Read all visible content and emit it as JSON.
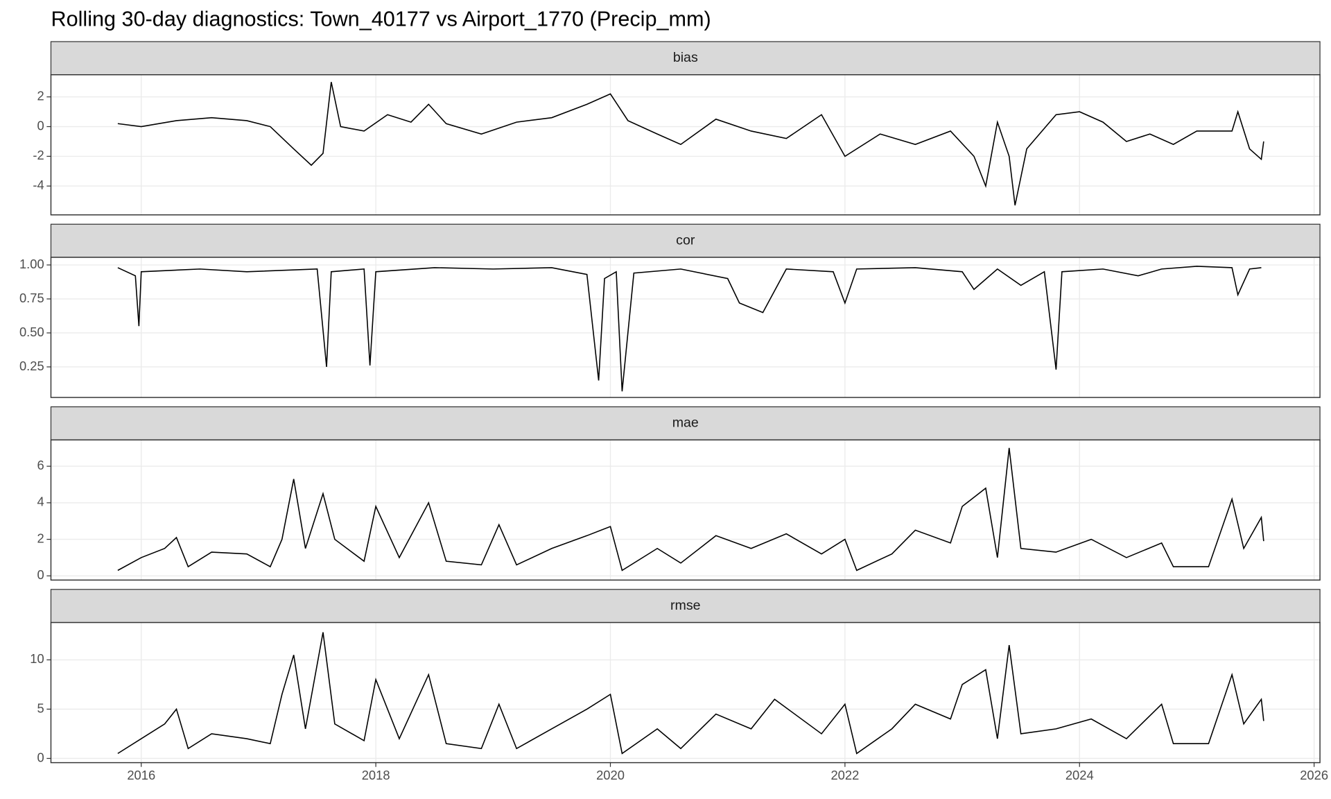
{
  "title": "Rolling 30-day diagnostics: Town_40177 vs Airport_1770 (Precip_mm)",
  "chart_data": [
    {
      "type": "line",
      "title": "bias",
      "color": "#000000",
      "grid": true,
      "x": [
        2015.8,
        2016.0,
        2016.3,
        2016.6,
        2016.9,
        2017.1,
        2017.3,
        2017.45,
        2017.55,
        2017.62,
        2017.7,
        2017.9,
        2018.1,
        2018.3,
        2018.45,
        2018.6,
        2018.9,
        2019.2,
        2019.5,
        2019.8,
        2020.0,
        2020.15,
        2020.4,
        2020.6,
        2020.9,
        2021.2,
        2021.5,
        2021.8,
        2022.0,
        2022.3,
        2022.6,
        2022.9,
        2023.1,
        2023.2,
        2023.3,
        2023.4,
        2023.45,
        2023.55,
        2023.8,
        2024.0,
        2024.2,
        2024.4,
        2024.6,
        2024.8,
        2025.0,
        2025.3,
        2025.35,
        2025.45,
        2025.55,
        2025.57
      ],
      "values": [
        0.2,
        0.0,
        0.4,
        0.6,
        0.4,
        0.0,
        -1.5,
        -2.6,
        -1.8,
        3.0,
        0.0,
        -0.3,
        0.8,
        0.3,
        1.5,
        0.2,
        -0.5,
        0.3,
        0.6,
        1.5,
        2.2,
        0.4,
        -0.5,
        -1.2,
        0.5,
        -0.3,
        -0.8,
        0.8,
        -2.0,
        -0.5,
        -1.2,
        -0.3,
        -2.0,
        -4.0,
        0.3,
        -2.0,
        -5.3,
        -1.5,
        0.8,
        1.0,
        0.3,
        -1.0,
        -0.5,
        -1.2,
        -0.3,
        -0.3,
        1.0,
        -1.5,
        -2.2,
        -1.0
      ],
      "xlim": [
        2015.23,
        2026.05
      ],
      "xticks": [
        2016,
        2018,
        2020,
        2022,
        2024,
        2026
      ],
      "ylim": [
        -5.94,
        3.49
      ],
      "yticks": [
        2,
        0,
        -2,
        -4
      ]
    },
    {
      "type": "line",
      "title": "cor",
      "color": "#000000",
      "grid": true,
      "x": [
        2015.8,
        2015.95,
        2015.98,
        2016.0,
        2016.5,
        2016.9,
        2017.5,
        2017.58,
        2017.62,
        2017.9,
        2017.95,
        2018.0,
        2018.5,
        2019.0,
        2019.5,
        2019.8,
        2019.9,
        2019.95,
        2020.05,
        2020.1,
        2020.2,
        2020.6,
        2021.0,
        2021.1,
        2021.3,
        2021.5,
        2021.9,
        2022.0,
        2022.1,
        2022.6,
        2023.0,
        2023.1,
        2023.3,
        2023.5,
        2023.7,
        2023.8,
        2023.85,
        2024.2,
        2024.5,
        2024.7,
        2025.0,
        2025.3,
        2025.35,
        2025.45,
        2025.55
      ],
      "values": [
        0.98,
        0.92,
        0.55,
        0.95,
        0.97,
        0.95,
        0.97,
        0.25,
        0.95,
        0.97,
        0.26,
        0.95,
        0.98,
        0.97,
        0.98,
        0.93,
        0.15,
        0.9,
        0.95,
        0.07,
        0.94,
        0.97,
        0.9,
        0.72,
        0.65,
        0.97,
        0.95,
        0.72,
        0.97,
        0.98,
        0.95,
        0.82,
        0.97,
        0.85,
        0.95,
        0.23,
        0.95,
        0.97,
        0.92,
        0.97,
        0.99,
        0.98,
        0.78,
        0.97,
        0.98
      ],
      "xlim": [
        2015.23,
        2026.05
      ],
      "xticks": [
        2016,
        2018,
        2020,
        2022,
        2024,
        2026
      ],
      "ylim": [
        0.025,
        1.056
      ],
      "yticks": [
        {
          "value": 1,
          "label": "1.00"
        },
        0.75,
        {
          "value": 0.5,
          "label": "0.50"
        },
        0.25
      ]
    },
    {
      "type": "line",
      "title": "mae",
      "color": "#000000",
      "grid": true,
      "x": [
        2015.8,
        2016.0,
        2016.2,
        2016.3,
        2016.4,
        2016.6,
        2016.9,
        2017.1,
        2017.2,
        2017.3,
        2017.4,
        2017.55,
        2017.65,
        2017.9,
        2018.0,
        2018.2,
        2018.45,
        2018.6,
        2018.9,
        2019.05,
        2019.2,
        2019.5,
        2019.8,
        2020.0,
        2020.1,
        2020.4,
        2020.6,
        2020.9,
        2021.2,
        2021.5,
        2021.8,
        2022.0,
        2022.1,
        2022.4,
        2022.6,
        2022.9,
        2023.0,
        2023.2,
        2023.3,
        2023.4,
        2023.5,
        2023.8,
        2024.1,
        2024.4,
        2024.7,
        2024.8,
        2025.1,
        2025.3,
        2025.4,
        2025.55,
        2025.57
      ],
      "values": [
        0.3,
        1.0,
        1.5,
        2.1,
        0.5,
        1.3,
        1.2,
        0.5,
        2.0,
        5.3,
        1.5,
        4.5,
        2.0,
        0.8,
        3.8,
        1.0,
        4.0,
        0.8,
        0.6,
        2.8,
        0.6,
        1.5,
        2.2,
        2.7,
        0.3,
        1.5,
        0.7,
        2.2,
        1.5,
        2.3,
        1.2,
        2.0,
        0.3,
        1.2,
        2.5,
        1.8,
        3.8,
        4.8,
        1.0,
        7.0,
        1.5,
        1.3,
        2.0,
        1.0,
        1.8,
        0.5,
        0.5,
        4.2,
        1.5,
        3.2,
        1.9
      ],
      "xlim": [
        2015.23,
        2026.05
      ],
      "xticks": [
        2016,
        2018,
        2020,
        2022,
        2024,
        2026
      ],
      "ylim": [
        -0.23,
        7.44
      ],
      "yticks": [
        6,
        4,
        2,
        0
      ]
    },
    {
      "type": "line",
      "title": "rmse",
      "color": "#000000",
      "grid": true,
      "x": [
        2015.8,
        2016.0,
        2016.2,
        2016.3,
        2016.4,
        2016.6,
        2016.9,
        2017.1,
        2017.2,
        2017.3,
        2017.4,
        2017.55,
        2017.65,
        2017.9,
        2018.0,
        2018.2,
        2018.45,
        2018.6,
        2018.9,
        2019.05,
        2019.2,
        2019.5,
        2019.8,
        2020.0,
        2020.1,
        2020.4,
        2020.6,
        2020.9,
        2021.2,
        2021.4,
        2021.8,
        2022.0,
        2022.1,
        2022.4,
        2022.6,
        2022.9,
        2023.0,
        2023.2,
        2023.3,
        2023.4,
        2023.5,
        2023.8,
        2024.1,
        2024.4,
        2024.7,
        2024.8,
        2025.1,
        2025.3,
        2025.4,
        2025.55,
        2025.57
      ],
      "values": [
        0.5,
        2.0,
        3.5,
        5.0,
        1.0,
        2.5,
        2.0,
        1.5,
        6.5,
        10.5,
        3.0,
        12.8,
        3.5,
        1.8,
        8.0,
        2.0,
        8.5,
        1.5,
        1.0,
        5.5,
        1.0,
        3.0,
        5.0,
        6.5,
        0.5,
        3.0,
        1.0,
        4.5,
        3.0,
        6.0,
        2.5,
        5.5,
        0.5,
        3.0,
        5.5,
        4.0,
        7.5,
        9.0,
        2.0,
        11.5,
        2.5,
        3.0,
        4.0,
        2.0,
        5.5,
        1.5,
        1.5,
        8.5,
        3.5,
        6.0,
        3.8
      ],
      "xlim": [
        2015.23,
        2026.05
      ],
      "xticks": [
        2016,
        2018,
        2020,
        2022,
        2024,
        2026
      ],
      "ylim": [
        -0.43,
        13.79
      ],
      "yticks": [
        10,
        5,
        0
      ]
    }
  ]
}
